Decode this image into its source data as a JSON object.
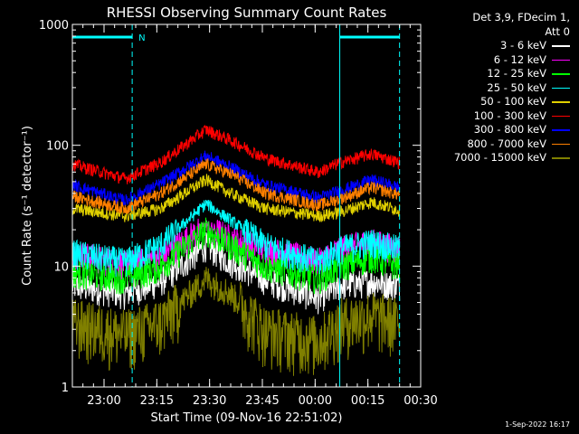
{
  "chart_data": {
    "type": "line",
    "title": "RHESSI Observing Summary Count Rates",
    "xlabel": "Start Time (09-Nov-16 22:51:02)",
    "ylabel": "Count Rate (s⁻¹ detector⁻¹)",
    "yscale": "log",
    "ylim": [
      1,
      1000
    ],
    "xlim": [
      0,
      99
    ],
    "x_unit": "minutes after 09-Nov-16 22:51:02",
    "x_ticks": [
      {
        "label": "23:00",
        "x": 9
      },
      {
        "label": "23:15",
        "x": 24
      },
      {
        "label": "23:30",
        "x": 39
      },
      {
        "label": "23:45",
        "x": 54
      },
      {
        "label": "00:00",
        "x": 69
      },
      {
        "label": "00:15",
        "x": 84
      },
      {
        "label": "00:30",
        "x": 99
      }
    ],
    "y_ticks": [
      {
        "label": "1",
        "y": 1
      },
      {
        "label": "10",
        "y": 10
      },
      {
        "label": "100",
        "y": 100
      },
      {
        "label": "1000",
        "y": 1000
      }
    ],
    "legend_header": "Det 3,9, FDecim 1,\nAtt 0",
    "series": [
      {
        "name": "3 - 6 keV",
        "color": "#ffffff",
        "values": [
          [
            0,
            7
          ],
          [
            15,
            6
          ],
          [
            25,
            7.5
          ],
          [
            38,
            15
          ],
          [
            45,
            11
          ],
          [
            55,
            7.8
          ],
          [
            70,
            5.5
          ],
          [
            76,
            7
          ],
          [
            85,
            7.5
          ],
          [
            93,
            7
          ]
        ]
      },
      {
        "name": "6 - 12 keV",
        "color": "#ff00ff",
        "values": [
          [
            0,
            13
          ],
          [
            15,
            10.5
          ],
          [
            25,
            12
          ],
          [
            38,
            22
          ],
          [
            45,
            17
          ],
          [
            55,
            14
          ],
          [
            70,
            11
          ],
          [
            76,
            14
          ],
          [
            85,
            16
          ],
          [
            93,
            14
          ]
        ]
      },
      {
        "name": "12 - 25 keV",
        "color": "#00ff00",
        "values": [
          [
            0,
            9
          ],
          [
            15,
            8
          ],
          [
            25,
            10
          ],
          [
            38,
            20
          ],
          [
            45,
            15
          ],
          [
            55,
            10
          ],
          [
            70,
            8
          ],
          [
            76,
            10
          ],
          [
            85,
            12
          ],
          [
            93,
            10
          ]
        ]
      },
      {
        "name": "25 - 50 keV",
        "color": "#00ffff",
        "values": [
          [
            0,
            13
          ],
          [
            15,
            11
          ],
          [
            25,
            15
          ],
          [
            38,
            33
          ],
          [
            45,
            24
          ],
          [
            55,
            15
          ],
          [
            70,
            11
          ],
          [
            76,
            14
          ],
          [
            85,
            16
          ],
          [
            93,
            14
          ]
        ]
      },
      {
        "name": "50 - 100 keV",
        "color": "#e0d000",
        "values": [
          [
            0,
            30
          ],
          [
            15,
            26
          ],
          [
            25,
            30
          ],
          [
            38,
            52
          ],
          [
            45,
            40
          ],
          [
            55,
            30
          ],
          [
            70,
            26
          ],
          [
            76,
            28
          ],
          [
            85,
            34
          ],
          [
            93,
            29
          ]
        ]
      },
      {
        "name": "100 - 300 keV",
        "color": "#ff0000",
        "values": [
          [
            0,
            70
          ],
          [
            15,
            53
          ],
          [
            25,
            72
          ],
          [
            38,
            135
          ],
          [
            45,
            110
          ],
          [
            55,
            78
          ],
          [
            70,
            60
          ],
          [
            76,
            72
          ],
          [
            85,
            85
          ],
          [
            93,
            72
          ]
        ]
      },
      {
        "name": "300 - 800 keV",
        "color": "#0000ff",
        "values": [
          [
            0,
            47
          ],
          [
            15,
            35
          ],
          [
            25,
            48
          ],
          [
            38,
            82
          ],
          [
            45,
            66
          ],
          [
            55,
            47
          ],
          [
            70,
            37
          ],
          [
            76,
            42
          ],
          [
            85,
            52
          ],
          [
            93,
            45
          ]
        ]
      },
      {
        "name": "800 - 7000 keV",
        "color": "#ff8000",
        "values": [
          [
            0,
            38
          ],
          [
            15,
            30
          ],
          [
            25,
            40
          ],
          [
            38,
            70
          ],
          [
            45,
            58
          ],
          [
            55,
            40
          ],
          [
            70,
            32
          ],
          [
            76,
            36
          ],
          [
            85,
            45
          ],
          [
            93,
            39
          ]
        ]
      },
      {
        "name": "7000 - 15000 keV",
        "color": "#808000",
        "values": [
          [
            0,
            3.5
          ],
          [
            15,
            2.8
          ],
          [
            25,
            3.5
          ],
          [
            38,
            8
          ],
          [
            45,
            6
          ],
          [
            55,
            3
          ],
          [
            70,
            2.5
          ],
          [
            76,
            3.5
          ],
          [
            85,
            4
          ],
          [
            93,
            3.5
          ]
        ]
      }
    ],
    "markers": {
      "solid_vlines": [
        0,
        76
      ],
      "dashed_vlines": [
        17,
        93
      ],
      "bars": [
        {
          "from": 0,
          "to": 17
        },
        {
          "from": 76,
          "to": 93
        }
      ],
      "bar_label": "N",
      "color": "#00ffff"
    }
  },
  "footer": {
    "timestamp": "1-Sep-2022 16:17"
  }
}
